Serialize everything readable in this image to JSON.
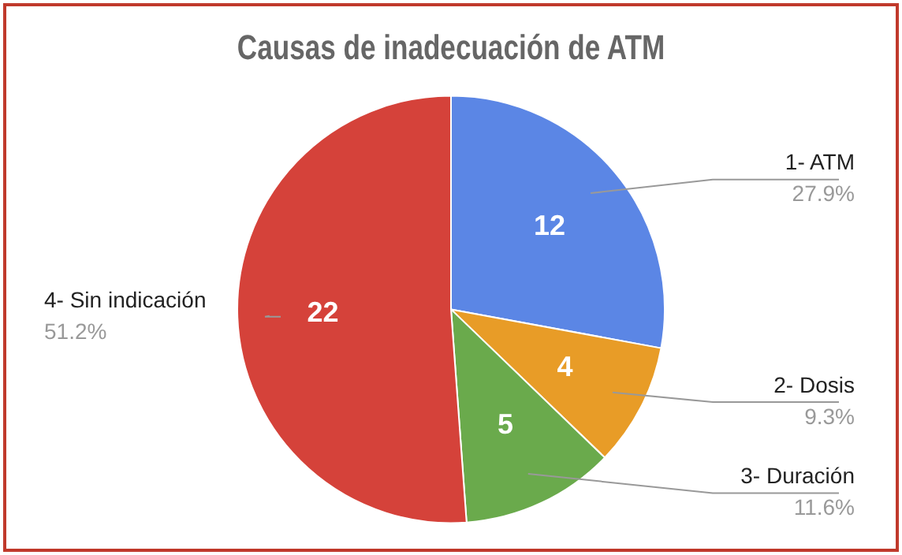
{
  "chart_data": {
    "type": "pie",
    "title": "Causas de inadecuación de ATM",
    "categories": [
      "1- ATM",
      "2- Dosis",
      "3- Duración",
      "4- Sin indicación"
    ],
    "values": [
      12,
      4,
      5,
      22
    ],
    "colors": [
      "#5b86e5",
      "#e89c27",
      "#6aaa4c",
      "#d5423a"
    ],
    "value_labels": [
      "12",
      "4",
      "5",
      "22"
    ],
    "annotations": [
      "27.9%",
      "9.3%",
      "11.6%",
      "51.2%"
    ],
    "legend": false
  }
}
